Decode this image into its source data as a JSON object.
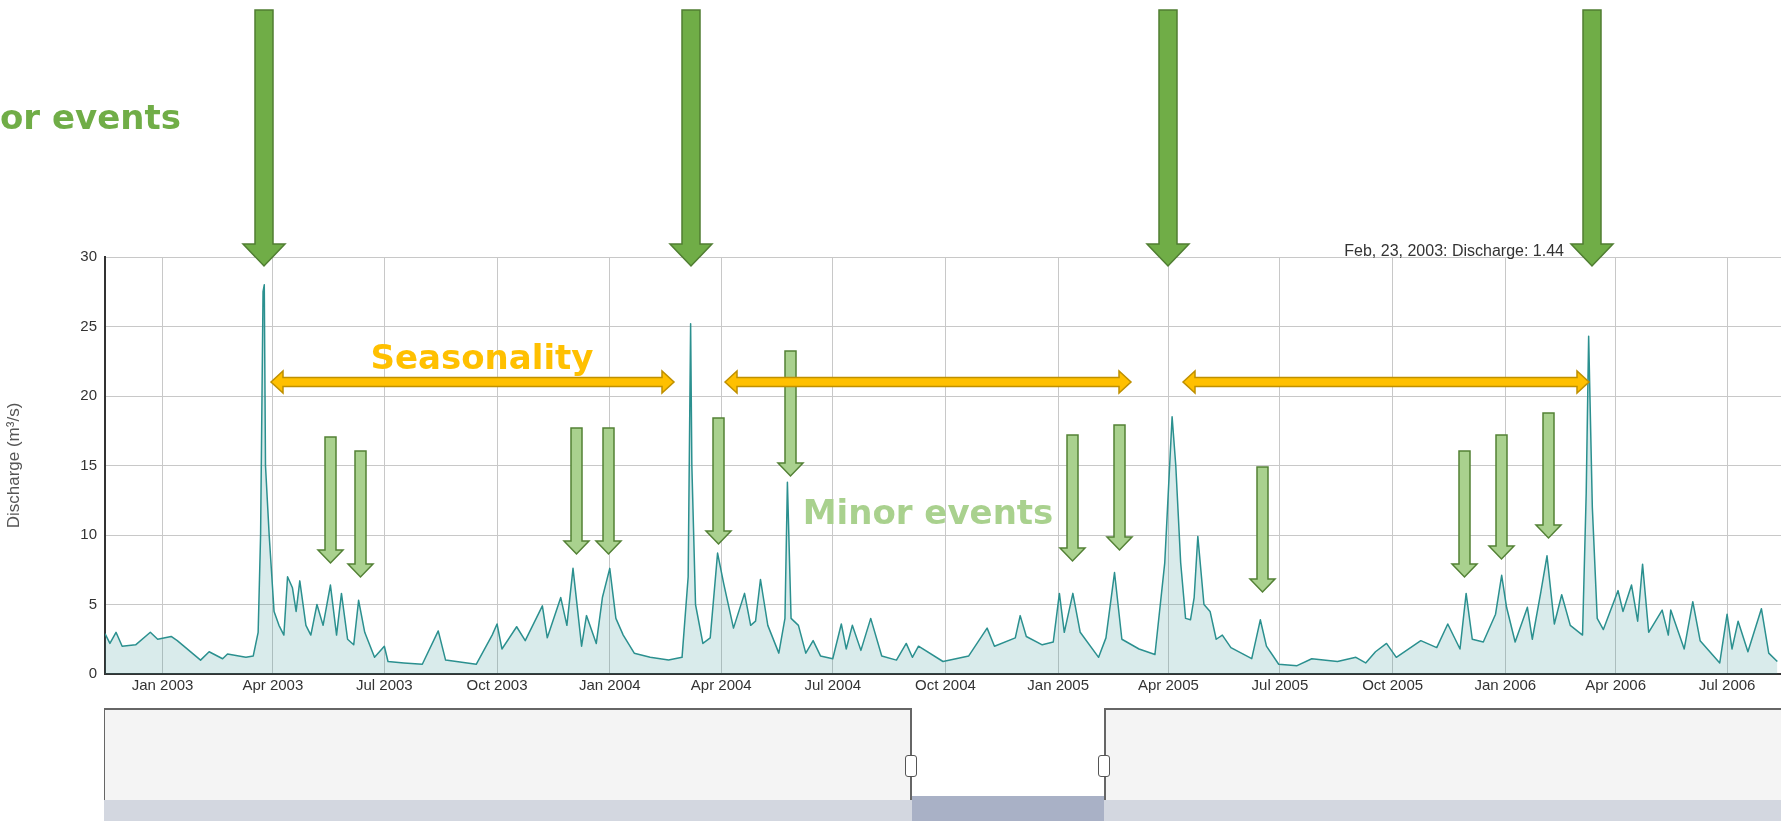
{
  "chart_data": {
    "type": "area",
    "ylabel": "Discharge (m³/s)",
    "annotations": [
      "or events",
      "Seasonality",
      "Minor events",
      "Feb, 23, 2003: Discharge: 1.44"
    ],
    "series": [
      {
        "color": "#2b908f",
        "x": [
          "2002-11-15",
          "2002-11-19",
          "2002-11-24",
          "2002-11-29",
          "2002-12-10",
          "2002-12-22",
          "2002-12-28",
          "2003-01-08",
          "2003-01-13",
          "2003-02-01",
          "2003-02-08",
          "2003-02-19",
          "2003-02-23",
          "2003-03-10",
          "2003-03-16",
          "2003-03-20",
          "2003-03-22",
          "2003-03-24",
          "2003-03-25",
          "2003-03-26",
          "2003-03-29",
          "2003-04-02",
          "2003-04-06",
          "2003-04-10",
          "2003-04-13",
          "2003-04-17",
          "2003-04-20",
          "2003-04-23",
          "2003-04-28",
          "2003-05-02",
          "2003-05-07",
          "2003-05-12",
          "2003-05-18",
          "2003-05-23",
          "2003-05-27",
          "2003-06-01",
          "2003-06-06",
          "2003-06-10",
          "2003-06-15",
          "2003-06-23",
          "2003-07-01",
          "2003-07-04",
          "2003-07-17",
          "2003-08-01",
          "2003-08-14",
          "2003-08-20",
          "2003-09-14",
          "2003-09-27",
          "2003-10-01",
          "2003-10-05",
          "2003-10-17",
          "2003-10-24",
          "2003-11-07",
          "2003-11-11",
          "2003-11-22",
          "2003-11-27",
          "2003-12-02",
          "2003-12-09",
          "2003-12-13",
          "2003-12-21",
          "2003-12-26",
          "2004-01-01",
          "2004-01-06",
          "2004-01-12",
          "2004-01-21",
          "2004-02-03",
          "2004-02-18",
          "2004-02-29",
          "2004-03-05",
          "2004-03-07",
          "2004-03-08",
          "2004-03-11",
          "2004-03-17",
          "2004-03-23",
          "2004-03-29",
          "2004-04-03",
          "2004-04-11",
          "2004-04-20",
          "2004-04-25",
          "2004-04-29",
          "2004-05-03",
          "2004-05-09",
          "2004-05-18",
          "2004-05-23",
          "2004-05-25",
          "2004-05-28",
          "2004-06-03",
          "2004-06-09",
          "2004-06-15",
          "2004-06-21",
          "2004-07-01",
          "2004-07-08",
          "2004-07-12",
          "2004-07-17",
          "2004-07-24",
          "2004-08-01",
          "2004-08-10",
          "2004-08-22",
          "2004-08-30",
          "2004-09-04",
          "2004-09-09",
          "2004-09-29",
          "2004-10-20",
          "2004-11-04",
          "2004-11-10",
          "2004-11-27",
          "2004-12-01",
          "2004-12-06",
          "2004-12-19",
          "2004-12-28",
          "2005-01-02",
          "2005-01-06",
          "2005-01-13",
          "2005-01-19",
          "2005-02-03",
          "2005-02-09",
          "2005-02-16",
          "2005-02-22",
          "2005-03-08",
          "2005-03-21",
          "2005-03-29",
          "2005-04-04",
          "2005-04-07",
          "2005-04-11",
          "2005-04-15",
          "2005-04-19",
          "2005-04-22",
          "2005-04-25",
          "2005-04-30",
          "2005-05-05",
          "2005-05-10",
          "2005-05-15",
          "2005-05-22",
          "2005-06-08",
          "2005-06-15",
          "2005-06-20",
          "2005-06-30",
          "2005-07-15",
          "2005-07-27",
          "2005-08-17",
          "2005-09-01",
          "2005-09-09",
          "2005-09-17",
          "2005-09-26",
          "2005-10-04",
          "2005-10-24",
          "2005-11-06",
          "2005-11-15",
          "2005-11-25",
          "2005-11-30",
          "2005-12-05",
          "2005-12-14",
          "2005-12-24",
          "2005-12-29",
          "2006-01-02",
          "2006-01-09",
          "2006-01-19",
          "2006-01-23",
          "2006-01-30",
          "2006-02-04",
          "2006-02-10",
          "2006-02-16",
          "2006-02-23",
          "2006-03-05",
          "2006-03-08",
          "2006-03-10",
          "2006-03-13",
          "2006-03-17",
          "2006-03-22",
          "2006-04-03",
          "2006-04-07",
          "2006-04-14",
          "2006-04-19",
          "2006-04-23",
          "2006-04-28",
          "2006-05-09",
          "2006-05-14",
          "2006-05-16",
          "2006-05-27",
          "2006-06-03",
          "2006-06-09",
          "2006-06-25",
          "2006-07-01",
          "2006-07-05",
          "2006-07-10",
          "2006-07-18",
          "2006-07-29",
          "2006-08-04",
          "2006-08-11"
        ],
        "values": [
          2.9,
          2.2,
          3.0,
          2.0,
          2.1,
          3.0,
          2.5,
          2.7,
          2.4,
          1.0,
          1.6,
          1.1,
          1.44,
          1.2,
          1.3,
          3,
          10,
          27.5,
          28,
          15,
          10,
          4.5,
          3.5,
          2.8,
          7.0,
          6.2,
          4.5,
          6.7,
          3.5,
          2.8,
          5.0,
          3.5,
          6.4,
          2.8,
          5.8,
          2.5,
          2.1,
          5.3,
          3.0,
          1.2,
          2.0,
          0.9,
          0.8,
          0.7,
          3.1,
          1.0,
          0.7,
          2.8,
          3.6,
          1.8,
          3.4,
          2.4,
          4.9,
          2.6,
          5.5,
          3.5,
          7.6,
          2.0,
          4.2,
          2.2,
          5.5,
          7.6,
          4.0,
          2.8,
          1.5,
          1.2,
          1.0,
          1.2,
          7,
          25.2,
          15,
          5,
          2.2,
          2.6,
          8.7,
          6.5,
          3.3,
          5.8,
          3.5,
          3.8,
          6.8,
          3.5,
          1.5,
          4.0,
          13.8,
          4.0,
          3.5,
          1.5,
          2.4,
          1.3,
          1.1,
          3.6,
          1.8,
          3.5,
          1.7,
          4.0,
          1.3,
          1.0,
          2.2,
          1.2,
          2.0,
          0.9,
          1.3,
          3.3,
          2.0,
          2.6,
          4.2,
          2.7,
          2.1,
          2.3,
          5.8,
          3.0,
          5.8,
          3.0,
          1.2,
          2.6,
          7.3,
          2.5,
          1.8,
          1.4,
          8,
          18.5,
          15,
          8,
          4.0,
          3.9,
          5.5,
          9.9,
          5.0,
          4.5,
          2.5,
          2.8,
          1.9,
          1.1,
          3.9,
          2.0,
          0.7,
          0.6,
          1.1,
          0.9,
          1.2,
          0.8,
          1.6,
          2.2,
          1.2,
          2.4,
          1.9,
          3.6,
          1.8,
          5.8,
          2.5,
          2.3,
          4.3,
          7.1,
          4.8,
          2.3,
          4.8,
          2.5,
          5.9,
          8.5,
          3.6,
          5.7,
          3.5,
          2.8,
          13,
          24.3,
          12,
          4,
          3.2,
          6,
          4.5,
          6.4,
          3.8,
          7.9,
          3,
          4.6,
          2.8,
          4.6,
          1.8,
          5.2,
          2.4,
          0.8,
          4.3,
          1.8,
          3.8,
          1.6,
          4.7,
          1.5,
          0.9
        ]
      }
    ],
    "xlim": [
      "2002-11-15",
      "2006-08-14"
    ],
    "xticks": [
      {
        "value": "2003-01-01",
        "label": "Jan 2003"
      },
      {
        "value": "2003-04-01",
        "label": "Apr 2003"
      },
      {
        "value": "2003-07-01",
        "label": "Jul 2003"
      },
      {
        "value": "2003-10-01",
        "label": "Oct 2003"
      },
      {
        "value": "2004-01-01",
        "label": "Jan 2004"
      },
      {
        "value": "2004-04-01",
        "label": "Apr 2004"
      },
      {
        "value": "2004-07-01",
        "label": "Jul 2004"
      },
      {
        "value": "2004-10-01",
        "label": "Oct 2004"
      },
      {
        "value": "2005-01-01",
        "label": "Jan 2005"
      },
      {
        "value": "2005-04-01",
        "label": "Apr 2005"
      },
      {
        "value": "2005-07-01",
        "label": "Jul 2005"
      },
      {
        "value": "2005-10-01",
        "label": "Oct 2005"
      },
      {
        "value": "2006-01-01",
        "label": "Jan 2006"
      },
      {
        "value": "2006-04-01",
        "label": "Apr 2006"
      },
      {
        "value": "2006-07-01",
        "label": "Jul 2006"
      }
    ],
    "ylim": [
      0,
      30
    ],
    "yticks": [
      0,
      5,
      10,
      15,
      20,
      25,
      30
    ],
    "grid": true,
    "legend": false
  }
}
